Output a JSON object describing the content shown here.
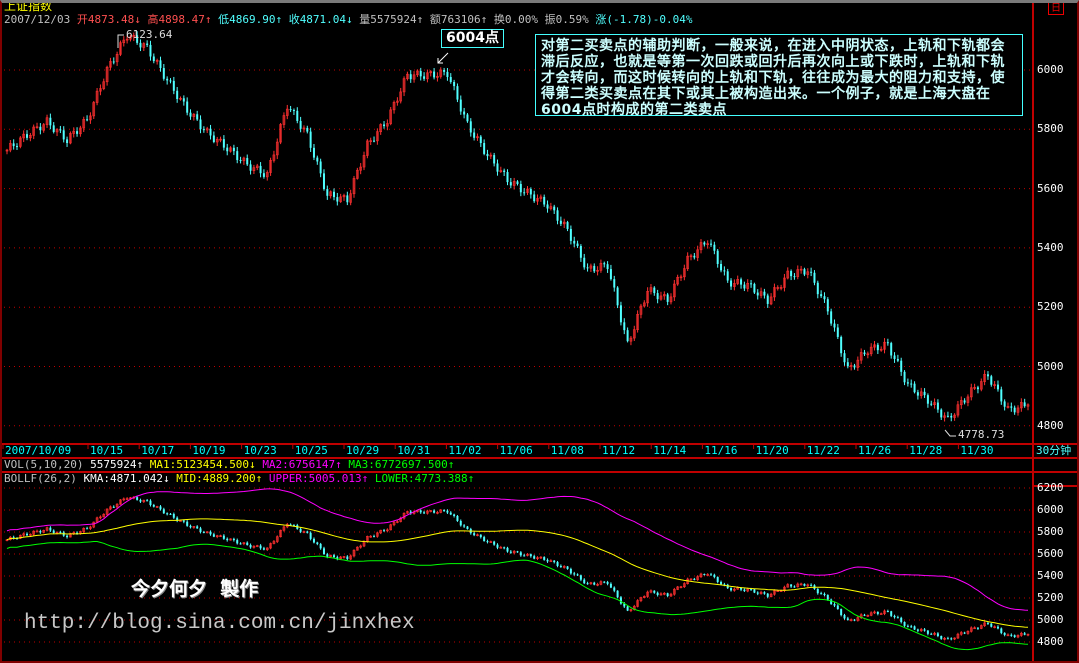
{
  "header": {
    "title": "上证指数",
    "period_icon": "日",
    "date": "2007/12/03",
    "open_label": "开",
    "open": "4873.48",
    "open_arrow": "↓",
    "high_label": "高",
    "high": "4898.47",
    "high_arrow": "↑",
    "low_label": "低",
    "low": "4869.90",
    "low_arrow": "↑",
    "close_label": "收",
    "close": "4871.04",
    "close_arrow": "↓",
    "volume": "量5575924↑",
    "amount": "额763106↑",
    "turnover": "换0.00%",
    "amplitude": "振0.59%",
    "change": "涨(-1.78)-0.04%"
  },
  "annotations": {
    "peak": "6123.64",
    "low": "4778.73",
    "tag": "6004点",
    "note": "对第二买卖点的辅助判断，一般来说，在进入中阴状态，上轨和下轨都会滞后反应，也就是等第一次回跌或回升后再次向上或下跌时，上轨和下轨才会转向，而这时候转向的上轨和下轨，往往成为最大的阻力和支持，使得第二类买卖点在其下或其上被构造出来。一个例子，就是上海大盘在6004点时构成的第二类卖点"
  },
  "xaxis": {
    "labels": [
      "2007/10/09",
      "10/15",
      "10/17",
      "10/19",
      "10/23",
      "10/25",
      "10/29",
      "10/31",
      "11/02",
      "11/06",
      "11/08",
      "11/12",
      "11/14",
      "11/16",
      "11/20",
      "11/22",
      "11/26",
      "11/28",
      "11/30"
    ],
    "period": "30分钟"
  },
  "vol": {
    "name": "VOL(5,10,20)",
    "value": "5575924↑",
    "ma1": "MA1:5123454.500↓",
    "ma2": "MA2:6756147↑",
    "ma3": "MA3:6772697.500↑"
  },
  "boll": {
    "name": "BOLLF(26,2)",
    "kma": "KMA:4871.042↓",
    "mid": "MID:4889.200↑",
    "upper": "UPPER:5005.013↑",
    "lower": "LOWER:4773.388↑"
  },
  "watermark": {
    "author": "今夕何夕  製作",
    "url": "http://blog.sina.com.cn/jinxhex"
  },
  "colors": {
    "up": "#ff3030",
    "down": "#50ffff",
    "mid": "#ffff00",
    "upper": "#ff00ff",
    "lower": "#00ff00",
    "grid": "#c00000"
  },
  "chart_data": {
    "type": "candlestick",
    "title": "上证指数",
    "interval": "30分钟",
    "main_yticks": [
      6000,
      5800,
      5600,
      5400,
      5200,
      5000,
      4800
    ],
    "boll_yticks": [
      6200,
      6000,
      5800,
      5600,
      5400,
      5200,
      5000,
      4800
    ],
    "ylim": [
      4740,
      6180
    ],
    "close_path": [
      5730,
      5781,
      5825,
      5764,
      5831,
      6000,
      6118,
      6074,
      5966,
      5865,
      5788,
      5737,
      5680,
      5646,
      5882,
      5781,
      5578,
      5562,
      5747,
      5831,
      5983,
      5983,
      5990,
      5815,
      5713,
      5629,
      5585,
      5545,
      5460,
      5325,
      5342,
      5073,
      5258,
      5224,
      5359,
      5427,
      5285,
      5275,
      5224,
      5309,
      5325,
      5191,
      4988,
      5056,
      5073,
      4938,
      4887,
      4820,
      4904,
      4971,
      4853,
      4871
    ]
  }
}
